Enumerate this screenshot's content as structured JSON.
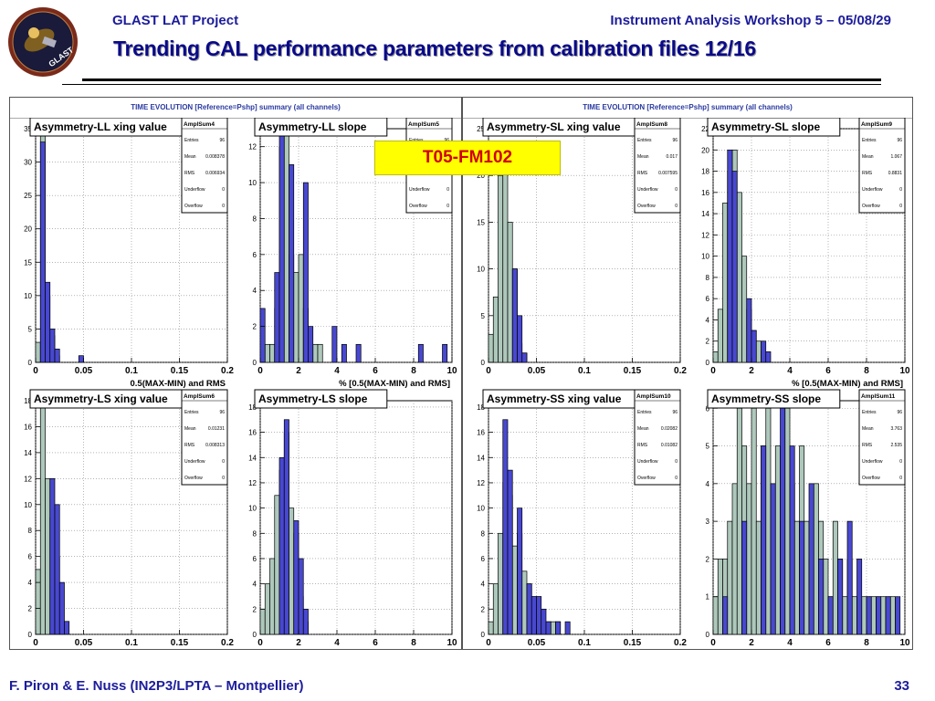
{
  "header": {
    "project": "GLAST LAT Project",
    "workshop": "Instrument Analysis Workshop 5 – 05/08/29",
    "title": "Trending CAL performance parameters from calibration files 12/16"
  },
  "logo": {
    "text": "GLAST",
    "icon": "glast-mission-logo"
  },
  "badge": {
    "label": "T05-FM102",
    "bg": "#ffff00",
    "color": "#d00000"
  },
  "footer": {
    "authors": "F. Piron & E. Nuss  (IN2P3/LPTA – Montpellier)",
    "page": "33"
  },
  "colors": {
    "fill_a": "#aec8bc",
    "fill_b": "#4848d0"
  },
  "canvases": [
    {
      "title": "TIME EVOLUTION [Reference=Pshp] summary (all channels)"
    },
    {
      "title": "TIME EVOLUTION [Reference=Pshp] summary (all channels)"
    }
  ],
  "stat_labels": [
    "Entries",
    "Mean",
    "RMS",
    "Underflow",
    "Overflow"
  ],
  "chart_data": [
    {
      "type": "bar",
      "title": "Asymmetry-LL xing value",
      "stat_title": "AmplSum4",
      "stats": [
        "96",
        "0.008378",
        "0.006934",
        "0",
        "0"
      ],
      "xlabel": "0.5(MAX-MIN) and RMS",
      "xlim": [
        0,
        0.2
      ],
      "ylim": [
        0,
        35
      ],
      "xticks": [
        0,
        0.05,
        0.1,
        0.15,
        0.2
      ],
      "xtick_labels": [
        "0",
        "0.05",
        "0.1",
        "0.15",
        "0.2"
      ],
      "yticks": [
        0,
        5,
        10,
        15,
        20,
        25,
        30,
        35
      ],
      "binwidth": 0.005,
      "series": [
        {
          "name": "a",
          "x": [
            -0.005,
            0,
            0.005,
            0.01,
            0.015,
            0.02,
            0.025,
            0.03
          ],
          "values": [
            0,
            3,
            35,
            10,
            4,
            1,
            0,
            0
          ]
        },
        {
          "name": "b",
          "x": [
            0.005,
            0.01,
            0.015,
            0.02,
            0.045
          ],
          "values": [
            33,
            12,
            5,
            2,
            1
          ]
        }
      ]
    },
    {
      "type": "bar",
      "title": "Asymmetry-LL slope",
      "stat_title": "AmplSum5",
      "stats": [
        "96",
        "1.857",
        "1.201",
        "0",
        "0"
      ],
      "xlabel": "% [0.5(MAX-MIN) and RMS]",
      "xlim": [
        0,
        10
      ],
      "ylim": [
        0,
        13
      ],
      "xticks": [
        0,
        2,
        4,
        6,
        8,
        10
      ],
      "xtick_labels": [
        "0",
        "2",
        "4",
        "6",
        "8",
        "10"
      ],
      "yticks": [
        0,
        2,
        4,
        6,
        8,
        10,
        12
      ],
      "binwidth": 0.25,
      "series": [
        {
          "name": "a",
          "x": [
            0,
            0.25,
            0.5,
            0.75,
            1,
            1.25,
            1.5,
            1.75,
            2,
            2.25,
            2.5,
            2.75,
            3,
            3.25,
            3.5
          ],
          "values": [
            0,
            1,
            1,
            3,
            12,
            13,
            6,
            5,
            6,
            3,
            1,
            1,
            1,
            0,
            0
          ]
        },
        {
          "name": "b",
          "x": [
            0,
            0.75,
            1,
            1.5,
            2.25,
            2.5,
            3.75,
            4.25,
            5,
            8.25,
            9.5
          ],
          "values": [
            3,
            5,
            13,
            11,
            10,
            2,
            2,
            1,
            1,
            1,
            1
          ]
        }
      ]
    },
    {
      "type": "bar",
      "title": "Asymmetry-LS xing value",
      "stat_title": "AmplSum6",
      "stats": [
        "96",
        "0.01231",
        "0.008313",
        "0",
        "0"
      ],
      "xlabel": "0.5(MAX-MIN) and RMS",
      "xlim": [
        0,
        0.2
      ],
      "ylim": [
        0,
        18
      ],
      "xticks": [
        0,
        0.05,
        0.1,
        0.15,
        0.2
      ],
      "xtick_labels": [
        "0",
        "0.05",
        "0.1",
        "0.15",
        "0.2"
      ],
      "yticks": [
        0,
        2,
        4,
        6,
        8,
        10,
        12,
        14,
        16,
        18
      ],
      "binwidth": 0.005,
      "series": [
        {
          "name": "a",
          "x": [
            -0.005,
            0,
            0.005,
            0.01,
            0.015,
            0.02,
            0.025,
            0.03
          ],
          "values": [
            2,
            5,
            18,
            12,
            9,
            6,
            1,
            0
          ]
        },
        {
          "name": "b",
          "x": [
            0.015,
            0.02,
            0.025,
            0.03
          ],
          "values": [
            12,
            10,
            4,
            1
          ]
        }
      ]
    },
    {
      "type": "bar",
      "title": "Asymmetry-LS slope",
      "stat_title": "",
      "stats": [],
      "xlabel": "% [0.5(MAX-MIN) and RMS]",
      "xlim": [
        0,
        10
      ],
      "ylim": [
        0,
        18.5
      ],
      "xticks": [
        0,
        2,
        4,
        6,
        8,
        10
      ],
      "xtick_labels": [
        "0",
        "2",
        "4",
        "6",
        "8",
        "10"
      ],
      "yticks": [
        0,
        2,
        4,
        6,
        8,
        10,
        12,
        14,
        16,
        18
      ],
      "binwidth": 0.25,
      "series": [
        {
          "name": "a",
          "x": [
            0,
            0.25,
            0.5,
            0.75,
            1,
            1.25,
            1.5,
            1.75,
            2,
            2.25,
            2.5
          ],
          "values": [
            2,
            4,
            6,
            11,
            13,
            16,
            10,
            8,
            3,
            1,
            0
          ]
        },
        {
          "name": "b",
          "x": [
            1,
            1.25,
            1.75,
            2,
            2.25
          ],
          "values": [
            14,
            17,
            9,
            6,
            2
          ]
        }
      ]
    },
    {
      "type": "bar",
      "title": "Asymmetry-SL xing value",
      "stat_title": "AmplSum8",
      "stats": [
        "96",
        "0.017",
        "0.007595",
        "0",
        "0"
      ],
      "xlabel": "",
      "xlim": [
        0,
        0.2
      ],
      "ylim": [
        0,
        25
      ],
      "xticks": [
        0,
        0.05,
        0.1,
        0.15,
        0.2
      ],
      "xtick_labels": [
        "0",
        "0.05",
        "0.1",
        "0.15",
        "0.2"
      ],
      "yticks": [
        0,
        5,
        10,
        15,
        20,
        25
      ],
      "binwidth": 0.005,
      "series": [
        {
          "name": "a",
          "x": [
            0,
            0.005,
            0.01,
            0.015,
            0.02,
            0.025,
            0.03,
            0.035,
            0.04
          ],
          "values": [
            3,
            7,
            20,
            22,
            15,
            10,
            2,
            1,
            0
          ]
        },
        {
          "name": "b",
          "x": [
            0.025,
            0.03,
            0.035
          ],
          "values": [
            10,
            5,
            1
          ]
        }
      ]
    },
    {
      "type": "bar",
      "title": "Asymmetry-SL slope",
      "stat_title": "AmplSum9",
      "stats": [
        "96",
        "1.067",
        "0.8831",
        "0",
        "0"
      ],
      "xlabel": "% [0.5(MAX-MIN) and RMS]",
      "xlim": [
        0,
        10
      ],
      "ylim": [
        0,
        22
      ],
      "xticks": [
        0,
        2,
        4,
        6,
        8,
        10
      ],
      "xtick_labels": [
        "0",
        "2",
        "4",
        "6",
        "8",
        "10"
      ],
      "yticks": [
        0,
        2,
        4,
        6,
        8,
        10,
        12,
        14,
        16,
        18,
        20,
        22
      ],
      "binwidth": 0.25,
      "series": [
        {
          "name": "a",
          "x": [
            0,
            0.25,
            0.5,
            0.75,
            1,
            1.25,
            1.5,
            1.75,
            2,
            2.25,
            2.5,
            2.75,
            3
          ],
          "values": [
            1,
            5,
            15,
            18,
            20,
            16,
            10,
            5,
            3,
            2,
            1,
            0,
            0
          ]
        },
        {
          "name": "b",
          "x": [
            0.75,
            1,
            1.75,
            2,
            2.5,
            2.75
          ],
          "values": [
            20,
            18,
            6,
            3,
            2,
            1
          ]
        }
      ]
    },
    {
      "type": "bar",
      "title": "Asymmetry-SS xing value",
      "stat_title": "AmplSum10",
      "stats": [
        "96",
        "0.02082",
        "0.01082",
        "0",
        "0"
      ],
      "xlabel": "",
      "xlim": [
        0,
        0.2
      ],
      "ylim": [
        0,
        18.5
      ],
      "xticks": [
        0,
        0.05,
        0.1,
        0.15,
        0.2
      ],
      "xtick_labels": [
        "0",
        "0.05",
        "0.1",
        "0.15",
        "0.2"
      ],
      "yticks": [
        0,
        2,
        4,
        6,
        8,
        10,
        12,
        14,
        16,
        18
      ],
      "binwidth": 0.005,
      "series": [
        {
          "name": "a",
          "x": [
            0,
            0.005,
            0.01,
            0.015,
            0.02,
            0.025,
            0.03,
            0.035,
            0.04,
            0.045,
            0.05,
            0.055,
            0.06,
            0.065,
            0.07,
            0.075
          ],
          "values": [
            1,
            4,
            8,
            12,
            11,
            7,
            8,
            5,
            4,
            2,
            2,
            1,
            1,
            1,
            1,
            0
          ]
        },
        {
          "name": "b",
          "x": [
            0.015,
            0.02,
            0.03,
            0.04,
            0.045,
            0.05,
            0.055,
            0.06,
            0.07,
            0.08
          ],
          "values": [
            17,
            13,
            10,
            4,
            3,
            3,
            2,
            1,
            1,
            1
          ]
        }
      ]
    },
    {
      "type": "bar",
      "title": "Asymmetry-SS slope",
      "stat_title": "AmplSum11",
      "stats": [
        "96",
        "3.763",
        "2.535",
        "0",
        "0"
      ],
      "xlabel": "% [0.5(MAX-MIN) and RMS]",
      "xlim": [
        0,
        10
      ],
      "ylim": [
        0,
        6.2
      ],
      "xticks": [
        0,
        2,
        4,
        6,
        8,
        10
      ],
      "xtick_labels": [
        "0",
        "2",
        "4",
        "6",
        "8",
        "10"
      ],
      "yticks": [
        0,
        1,
        2,
        3,
        4,
        5,
        6
      ],
      "binwidth": 0.25,
      "series": [
        {
          "name": "a",
          "x": [
            0,
            0.25,
            0.5,
            0.75,
            1,
            1.25,
            1.5,
            1.75,
            2,
            2.25,
            2.5,
            2.75,
            3,
            3.25,
            3.5,
            3.75,
            4,
            4.25,
            4.5,
            4.75,
            5,
            5.25,
            5.5,
            5.75,
            6,
            6.25,
            6.5,
            6.75,
            7,
            7.25,
            7.5,
            7.75,
            8,
            8.25,
            8.5,
            8.75,
            9,
            9.25,
            9.5
          ],
          "values": [
            1,
            2,
            2,
            3,
            4,
            6,
            5,
            4,
            6,
            3,
            5,
            6,
            4,
            5,
            3,
            6,
            4,
            3,
            5,
            3,
            2,
            4,
            3,
            2,
            1,
            3,
            2,
            1,
            2,
            1,
            1,
            1,
            1,
            1,
            1,
            1,
            1,
            1,
            0
          ]
        },
        {
          "name": "b",
          "x": [
            0.5,
            1.5,
            2.5,
            3,
            3.5,
            4,
            4.5,
            5,
            5.5,
            6,
            6.5,
            7,
            7.5,
            8,
            8.5,
            9,
            9.5
          ],
          "values": [
            1,
            3,
            5,
            4,
            6,
            5,
            3,
            4,
            2,
            1,
            2,
            3,
            2,
            1,
            1,
            1,
            1
          ]
        }
      ]
    }
  ]
}
